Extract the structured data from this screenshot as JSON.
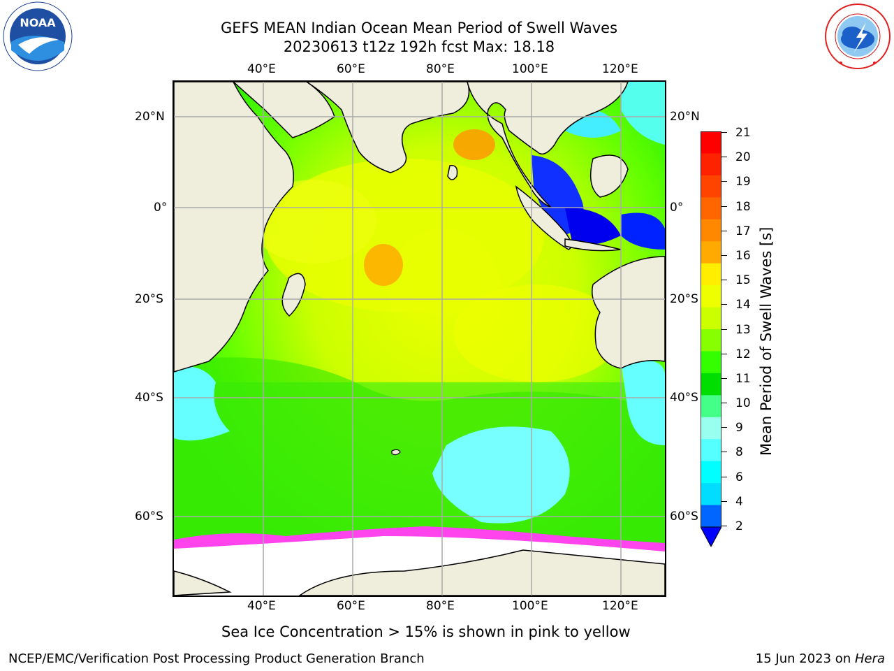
{
  "header": {
    "title_line1": "GEFS MEAN Indian Ocean Mean Period of Swell Waves",
    "title_line2": "20230613 t12z 192h fcst   Max: 18.18"
  },
  "logos": {
    "left": {
      "text": "NOAA",
      "ring_text": "NATIONAL OCEANIC AND ATMOSPHERIC ADMINISTRATION · U.S. DEPARTMENT OF COMMERCE"
    },
    "right": {
      "ring_text": "NATIONAL WEATHER SERVICE"
    }
  },
  "map": {
    "top_lon_labels": [
      "40°E",
      "60°E",
      "80°E",
      "100°E",
      "120°E"
    ],
    "bottom_lon_labels": [
      "40°E",
      "60°E",
      "80°E",
      "100°E",
      "120°E"
    ],
    "left_lat_labels": [
      "20°N",
      "0°",
      "20°S",
      "40°S",
      "60°S"
    ],
    "right_lat_labels": [
      "20°N",
      "0°",
      "20°S",
      "40°S",
      "60°S"
    ],
    "lon_range": [
      20,
      130
    ],
    "lat_range": [
      -75,
      28
    ],
    "colors": {
      "land": "#efeedd",
      "ice": "#ffffff",
      "grid": "#aaaaaa"
    }
  },
  "colorbar": {
    "label": "Mean Period of Swell Waves [s]",
    "ticks": [
      "21",
      "20",
      "19",
      "18",
      "17",
      "16",
      "15",
      "14",
      "13",
      "12",
      "11",
      "10",
      "9",
      "8",
      "6",
      "4",
      "2"
    ],
    "colors_top_to_bottom": [
      "#ff0000",
      "#ff2200",
      "#ff4400",
      "#ff6600",
      "#ff8800",
      "#ffaa00",
      "#ffee00",
      "#eeff00",
      "#ccff00",
      "#88ff00",
      "#33ff00",
      "#00dd00",
      "#44ff88",
      "#99ffee",
      "#55ffff",
      "#00ffff",
      "#00ddff",
      "#0066ff"
    ],
    "extend_color": "#0000ff"
  },
  "subtitle": "Sea Ice Concentration > 15% is shown in pink to yellow",
  "footer": {
    "left": "NCEP/EMC/Verification Post Processing Product Generation Branch",
    "right_prefix": "15 Jun 2023 on ",
    "right_machine": "Hera"
  }
}
